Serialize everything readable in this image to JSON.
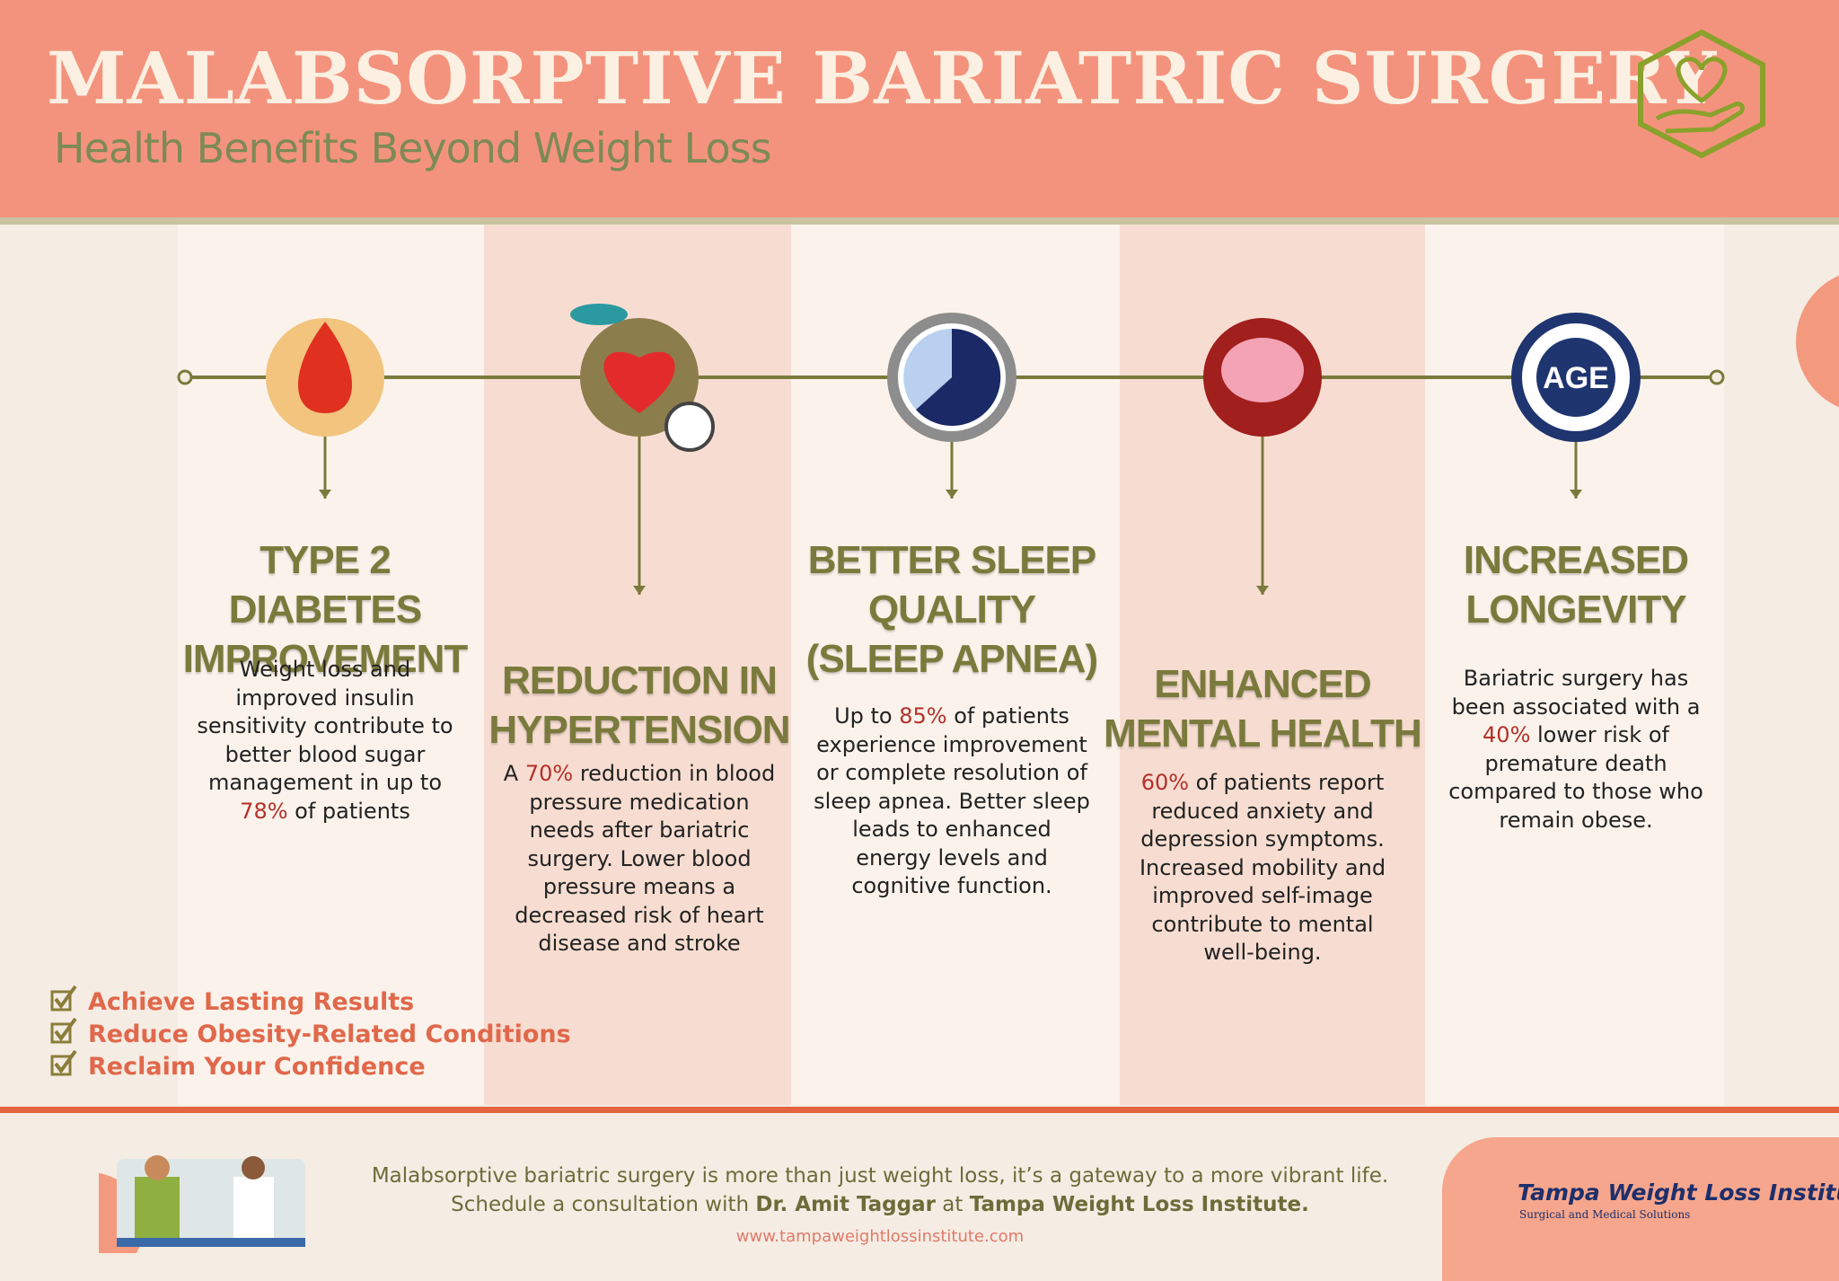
{
  "header": {
    "title": "MALABSORPTIVE BARIATRIC SURGERY",
    "subtitle": "Health Benefits Beyond Weight Loss"
  },
  "benefits": [
    {
      "title_lines": [
        "TYPE 2 DIABETES",
        "IMPROVEMENT"
      ],
      "pre": "Weight loss and improved insulin sensitivity contribute to better blood sugar management in up to ",
      "stat": "78%",
      "post": " of patients"
    },
    {
      "title_lines": [
        "REDUCTION IN",
        "HYPERTENSION"
      ],
      "pre": "A ",
      "stat": "70%",
      "post": " reduction in blood pressure medication needs after bariatric surgery. Lower blood pressure means a decreased risk of heart disease and stroke"
    },
    {
      "title_lines": [
        "BETTER SLEEP",
        "QUALITY",
        "(SLEEP APNEA)"
      ],
      "pre": "Up to ",
      "stat": "85%",
      "post": " of patients experience improvement or complete resolution of sleep apnea. Better sleep leads to enhanced energy levels and cognitive function."
    },
    {
      "title_lines": [
        "ENHANCED",
        "MENTAL HEALTH"
      ],
      "stat": "60%",
      "post": " of patients report reduced anxiety and depression symptoms. Increased mobility and improved self-image contribute to mental well-being."
    },
    {
      "title_lines": [
        "INCREASED",
        "LONGEVITY"
      ],
      "icon_text": "AGE",
      "pre": "Bariatric surgery has been associated with a ",
      "stat": "40%",
      "post": " lower risk of premature death compared to those who remain obese."
    }
  ],
  "checklist": [
    "Achieve Lasting Results",
    "Reduce Obesity-Related Conditions",
    "Reclaim Your Confidence"
  ],
  "footer": {
    "line1": "Malabsorptive bariatric surgery is more than just weight loss, it’s a gateway to a more vibrant life.",
    "line2": [
      "Schedule a consultation with ",
      "Dr. Amit Taggar",
      " at ",
      "Tampa Weight Loss Institute."
    ],
    "website": "www.tampaweightlossinstitute.com"
  },
  "logo": {
    "name": "Tampa Weight Loss Institute",
    "tagline": "Surgical and Medical Solutions"
  }
}
